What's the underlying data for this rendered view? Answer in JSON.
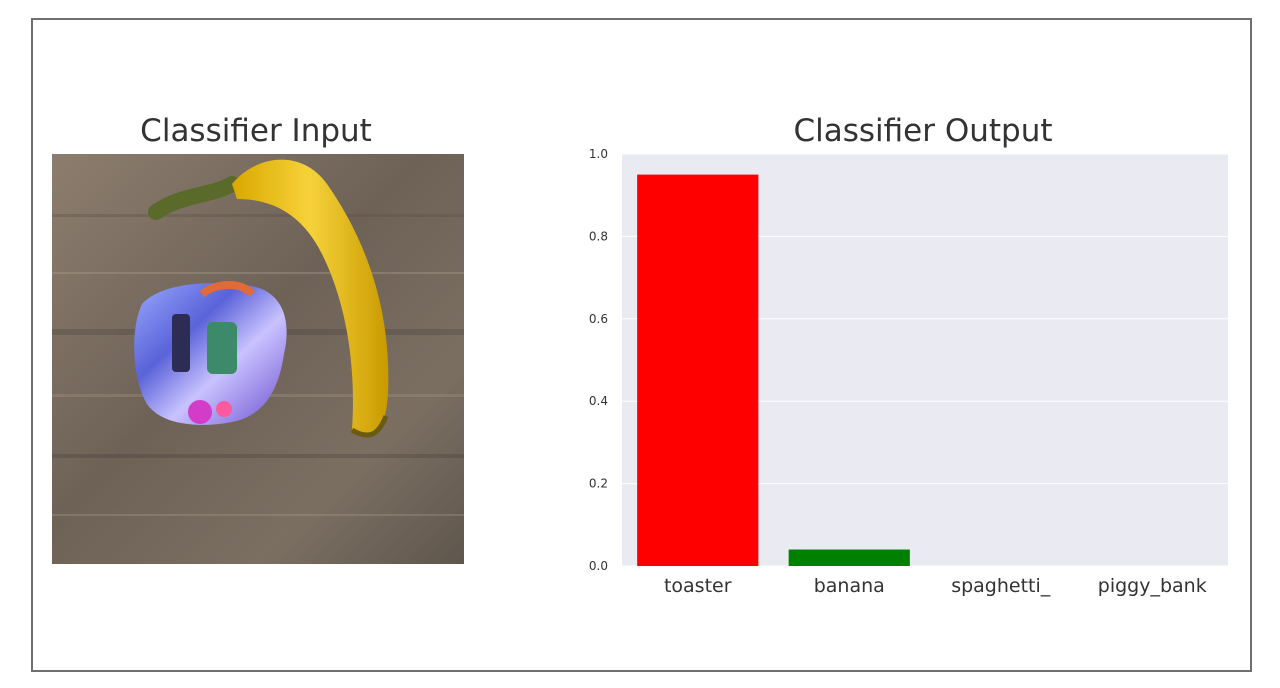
{
  "panels": {
    "input_title": "Classifier Input",
    "output_title": "Classifier Output"
  },
  "colors": {
    "toaster": "#ff0000",
    "banana": "#008000",
    "plot_background": "#eaeaf2",
    "frame_border": "#6f6f6f"
  },
  "chart_data": {
    "type": "bar",
    "title": "Classifier Output",
    "categories": [
      "toaster",
      "banana",
      "spaghetti_",
      "piggy_bank"
    ],
    "values": [
      0.95,
      0.04,
      0.0,
      0.0
    ],
    "bar_colors": [
      "#ff0000",
      "#008000",
      "#ff0000",
      "#ff0000"
    ],
    "ylim": [
      0,
      1.0
    ],
    "yticks": [
      "0.0",
      "0.2",
      "0.4",
      "0.6",
      "0.8",
      "1.0"
    ],
    "xlabel": "",
    "ylabel": "",
    "grid": true
  }
}
